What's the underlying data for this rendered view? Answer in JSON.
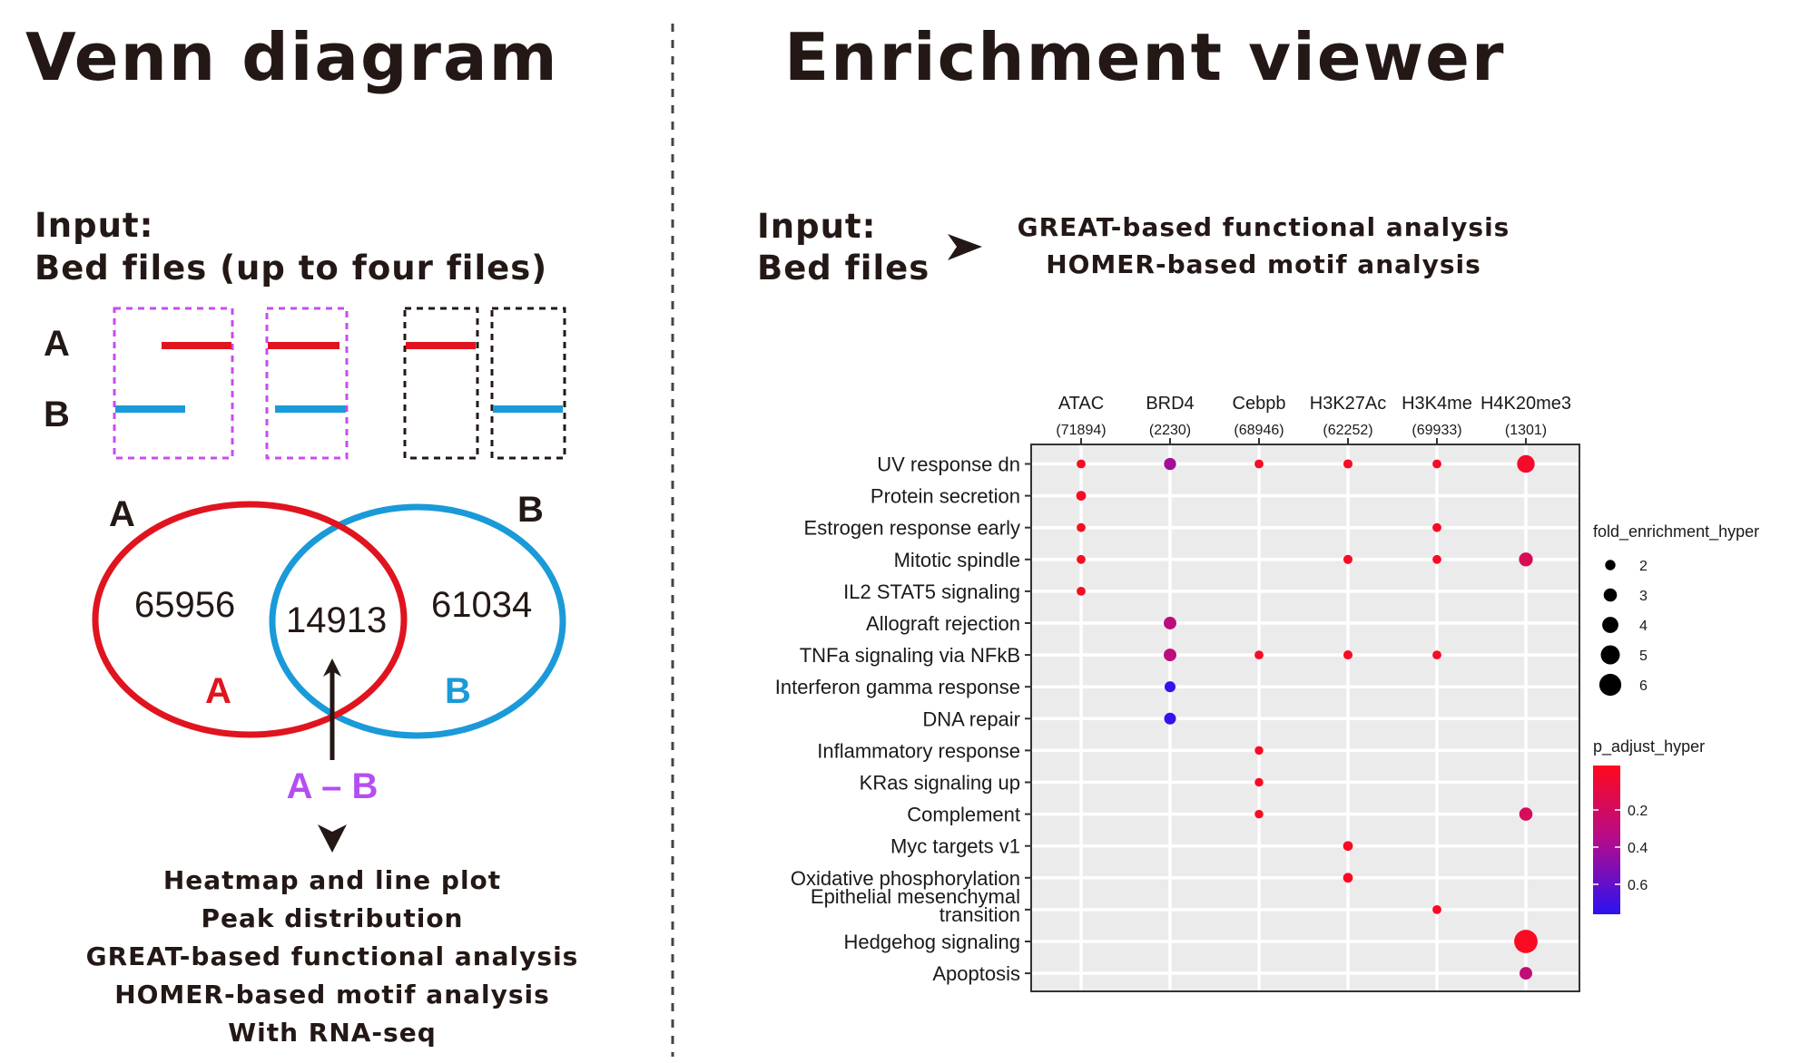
{
  "venn_panel": {
    "title": "Venn diagram",
    "input_label": "Input:",
    "input_desc": "Bed files (up to four files)",
    "row_a": "A",
    "row_b": "B",
    "circle_a_label": "A",
    "circle_b_label": "B",
    "count_a_only": "65956",
    "count_overlap": "14913",
    "count_b_only": "61034",
    "inner_a": "A",
    "inner_b": "B",
    "diff_label": "A – B",
    "outputs": [
      "Heatmap and line plot",
      "Peak distribution",
      "GREAT-based functional analysis",
      "HOMER-based motif analysis",
      "With RNA-seq"
    ]
  },
  "enrich_panel": {
    "title": "Enrichment viewer",
    "input_label": "Input:",
    "input_desc": "Bed files",
    "analyses": [
      "GREAT-based functional analysis",
      "HOMER-based motif analysis"
    ]
  },
  "colors": {
    "a_red": "#e0141f",
    "b_blue": "#1a9ad8",
    "purple": "#b44ef2",
    "text": "#231815"
  },
  "chart_data": {
    "type": "scatter",
    "columns": [
      {
        "name": "ATAC",
        "count": "(71894)"
      },
      {
        "name": "BRD4",
        "count": "(2230)"
      },
      {
        "name": "Cebpb",
        "count": "(68946)"
      },
      {
        "name": "H3K27Ac",
        "count": "(62252)"
      },
      {
        "name": "H3K4me",
        "count": "(69933)"
      },
      {
        "name": "H4K20me3",
        "count": "(1301)"
      }
    ],
    "rows": [
      [
        "UV response dn"
      ],
      [
        "Protein secretion"
      ],
      [
        "Estrogen response early"
      ],
      [
        "Mitotic spindle"
      ],
      [
        "IL2 STAT5 signaling"
      ],
      [
        "Allograft rejection"
      ],
      [
        "TNFa signaling via NFkB"
      ],
      [
        "Interferon gamma response"
      ],
      [
        "DNA repair"
      ],
      [
        "Inflammatory response"
      ],
      [
        "KRas signaling up"
      ],
      [
        "Complement"
      ],
      [
        "Myc targets v1"
      ],
      [
        "Oxidative phosphorylation"
      ],
      [
        "Epithelial mesenchymal",
        "transition"
      ],
      [
        "Hedgehog signaling"
      ],
      [
        "Apoptosis"
      ]
    ],
    "points": [
      {
        "col": 0,
        "row": 0,
        "fold": 1.5,
        "p": 0.02
      },
      {
        "col": 1,
        "row": 0,
        "fold": 2.6,
        "p": 0.45
      },
      {
        "col": 2,
        "row": 0,
        "fold": 1.5,
        "p": 0.02
      },
      {
        "col": 3,
        "row": 0,
        "fold": 1.6,
        "p": 0.02
      },
      {
        "col": 4,
        "row": 0,
        "fold": 1.5,
        "p": 0.02
      },
      {
        "col": 5,
        "row": 0,
        "fold": 4.5,
        "p": 0.05
      },
      {
        "col": 0,
        "row": 1,
        "fold": 1.8,
        "p": 0.02
      },
      {
        "col": 0,
        "row": 2,
        "fold": 1.5,
        "p": 0.02
      },
      {
        "col": 4,
        "row": 2,
        "fold": 1.5,
        "p": 0.02
      },
      {
        "col": 0,
        "row": 3,
        "fold": 1.5,
        "p": 0.02
      },
      {
        "col": 3,
        "row": 3,
        "fold": 1.6,
        "p": 0.02
      },
      {
        "col": 4,
        "row": 3,
        "fold": 1.5,
        "p": 0.02
      },
      {
        "col": 5,
        "row": 3,
        "fold": 3.2,
        "p": 0.2
      },
      {
        "col": 0,
        "row": 4,
        "fold": 1.5,
        "p": 0.02
      },
      {
        "col": 1,
        "row": 5,
        "fold": 2.8,
        "p": 0.35
      },
      {
        "col": 1,
        "row": 6,
        "fold": 2.8,
        "p": 0.35
      },
      {
        "col": 2,
        "row": 6,
        "fold": 1.5,
        "p": 0.02
      },
      {
        "col": 3,
        "row": 6,
        "fold": 1.6,
        "p": 0.02
      },
      {
        "col": 4,
        "row": 6,
        "fold": 1.5,
        "p": 0.02
      },
      {
        "col": 1,
        "row": 7,
        "fold": 2.2,
        "p": 0.78
      },
      {
        "col": 1,
        "row": 8,
        "fold": 2.5,
        "p": 0.78
      },
      {
        "col": 2,
        "row": 9,
        "fold": 1.4,
        "p": 0.02
      },
      {
        "col": 2,
        "row": 10,
        "fold": 1.4,
        "p": 0.02
      },
      {
        "col": 2,
        "row": 11,
        "fold": 1.4,
        "p": 0.02
      },
      {
        "col": 5,
        "row": 11,
        "fold": 3.0,
        "p": 0.22
      },
      {
        "col": 3,
        "row": 12,
        "fold": 1.8,
        "p": 0.02
      },
      {
        "col": 3,
        "row": 13,
        "fold": 1.8,
        "p": 0.02
      },
      {
        "col": 4,
        "row": 14,
        "fold": 1.5,
        "p": 0.02
      },
      {
        "col": 5,
        "row": 15,
        "fold": 6.5,
        "p": 0.02
      },
      {
        "col": 5,
        "row": 16,
        "fold": 2.8,
        "p": 0.32
      }
    ],
    "size_legend": {
      "title": "fold_enrichment_hyper",
      "values": [
        2,
        3,
        4,
        5,
        6
      ]
    },
    "color_legend": {
      "title": "p_adjust_hyper",
      "ticks": [
        0.2,
        0.4,
        0.6
      ],
      "range": [
        0.0,
        0.8
      ],
      "low_color": "#ff0a1e",
      "mid_color": "#b30c8c",
      "high_color": "#2b12f2"
    },
    "grid": true,
    "legend_placement": "right"
  }
}
